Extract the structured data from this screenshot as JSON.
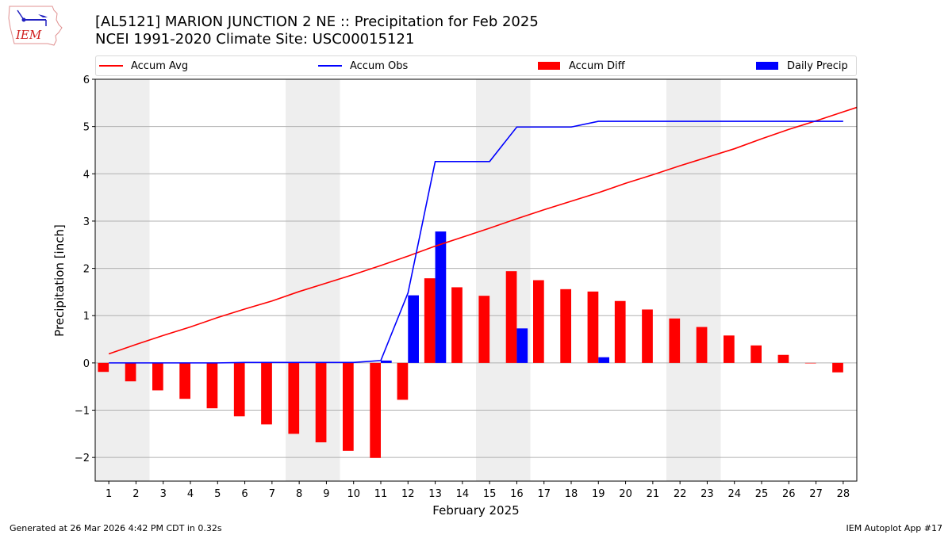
{
  "header": {
    "title_line1": "[AL5121] MARION JUNCTION 2 NE :: Precipitation for Feb 2025",
    "title_line2": "NCEI 1991-2020 Climate Site: USC00015121",
    "logo_text": "IEM"
  },
  "footer": {
    "left": "Generated at 26 Mar 2026 4:42 PM CDT in 0.32s",
    "right": "IEM Autoplot App #17"
  },
  "colors": {
    "accum_avg": "#ff0000",
    "accum_obs": "#0000ff",
    "accum_diff": "#ff0000",
    "daily_precip": "#0000ff",
    "weekend_shade": "#eeeeee",
    "grid": "#b0b0b0"
  },
  "chart_data": {
    "type": "bar",
    "title": "[AL5121] MARION JUNCTION 2 NE :: Precipitation for Feb 2025",
    "subtitle": "NCEI 1991-2020 Climate Site: USC00015121",
    "xlabel": "February 2025",
    "ylabel": "Precipitation [inch]",
    "xlim": [
      0.5,
      28.5
    ],
    "ylim": [
      -2.5,
      6
    ],
    "grid": "y",
    "legend": {
      "placement": "top",
      "entries": [
        "Accum Avg",
        "Accum Obs",
        "Accum Diff",
        "Daily Precip"
      ]
    },
    "x": [
      1,
      2,
      3,
      4,
      5,
      6,
      7,
      8,
      9,
      10,
      11,
      12,
      13,
      14,
      15,
      16,
      17,
      18,
      19,
      20,
      21,
      22,
      23,
      24,
      25,
      26,
      27,
      28
    ],
    "x_tick_labels": [
      "1",
      "2",
      "3",
      "4",
      "5",
      "6",
      "7",
      "8",
      "9",
      "10",
      "11",
      "12",
      "13",
      "14",
      "15",
      "16",
      "17",
      "18",
      "19",
      "20",
      "21",
      "22",
      "23",
      "24",
      "25",
      "26",
      "27",
      "28"
    ],
    "y_ticks": [
      -2,
      -1,
      0,
      1,
      2,
      3,
      4,
      5,
      6
    ],
    "y_tick_labels": [
      "−2",
      "−1",
      "0",
      "1",
      "2",
      "3",
      "4",
      "5",
      "6"
    ],
    "shaded_days": [
      [
        1,
        2
      ],
      [
        8,
        9
      ],
      [
        15,
        16
      ],
      [
        22,
        23
      ]
    ],
    "series": [
      {
        "name": "Accum Avg",
        "type": "line",
        "values": [
          0.19,
          0.39,
          0.58,
          0.76,
          0.96,
          1.14,
          1.31,
          1.51,
          1.69,
          1.87,
          2.06,
          2.26,
          2.47,
          2.66,
          2.85,
          3.05,
          3.24,
          3.42,
          3.6,
          3.8,
          3.98,
          4.17,
          4.35,
          4.53,
          4.74,
          4.94,
          5.12,
          5.31
        ]
      },
      {
        "name": "Accum Obs",
        "type": "line",
        "values": [
          0.0,
          0.0,
          0.0,
          0.0,
          0.0,
          0.01,
          0.01,
          0.01,
          0.01,
          0.01,
          0.05,
          1.48,
          4.26,
          4.26,
          4.26,
          4.99,
          4.99,
          4.99,
          5.11,
          5.11,
          5.11,
          5.11,
          5.11,
          5.11,
          5.11,
          5.11,
          5.11,
          5.11
        ]
      },
      {
        "name": "Accum Diff",
        "type": "bar",
        "values": [
          -0.19,
          -0.39,
          -0.58,
          -0.76,
          -0.96,
          -1.13,
          -1.3,
          -1.5,
          -1.68,
          -1.86,
          -2.01,
          -0.78,
          1.79,
          1.6,
          1.42,
          1.94,
          1.75,
          1.56,
          1.51,
          1.31,
          1.13,
          0.94,
          0.76,
          0.58,
          0.37,
          0.17,
          -0.01,
          -0.2
        ]
      },
      {
        "name": "Daily Precip",
        "type": "bar",
        "values": [
          0,
          0,
          0,
          0,
          0,
          0.01,
          0,
          0,
          0,
          0,
          0.05,
          1.43,
          2.78,
          0,
          0,
          0.73,
          0,
          0,
          0.12,
          0,
          0,
          0,
          0,
          0,
          0,
          0,
          0,
          0
        ]
      }
    ]
  }
}
